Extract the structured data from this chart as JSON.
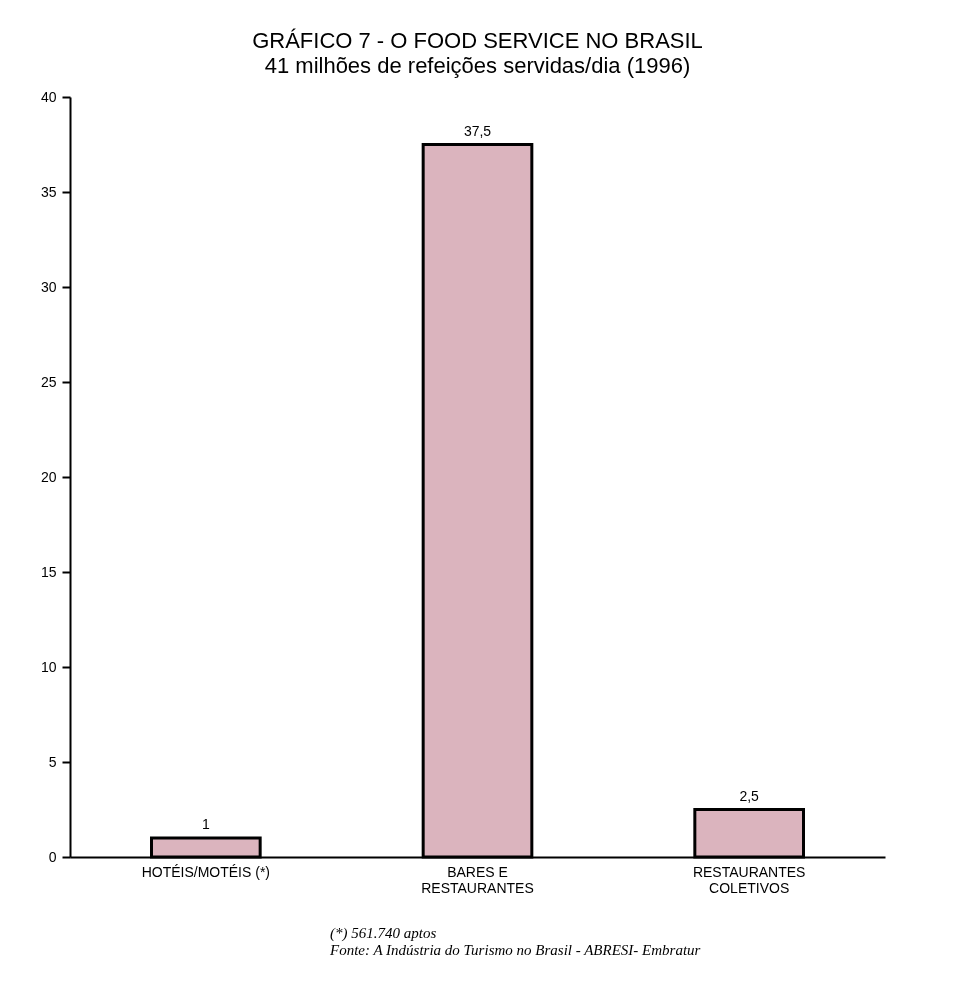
{
  "chart_data": {
    "type": "bar",
    "title": "GRÁFICO 7 - O FOOD SERVICE NO BRASIL",
    "subtitle": "41 milhões de refeições servidas/dia (1996)",
    "categories": [
      "HOTÉIS/MOTÉIS (*)",
      "BARES E RESTAURANTES",
      "RESTAURANTES COLETIVOS"
    ],
    "values": [
      1,
      37.5,
      2.5
    ],
    "value_labels": [
      "1",
      "37,5",
      "2,5"
    ],
    "color": "#dbb4be",
    "ylim": [
      0,
      40
    ],
    "yticks": [
      0,
      5,
      10,
      15,
      20,
      25,
      30,
      35,
      40
    ],
    "grid": false,
    "annotations": [
      "(*) 561.740 aptos",
      "Fonte: A Indústria do Turismo no Brasil - ABRESI- Embratur"
    ]
  }
}
